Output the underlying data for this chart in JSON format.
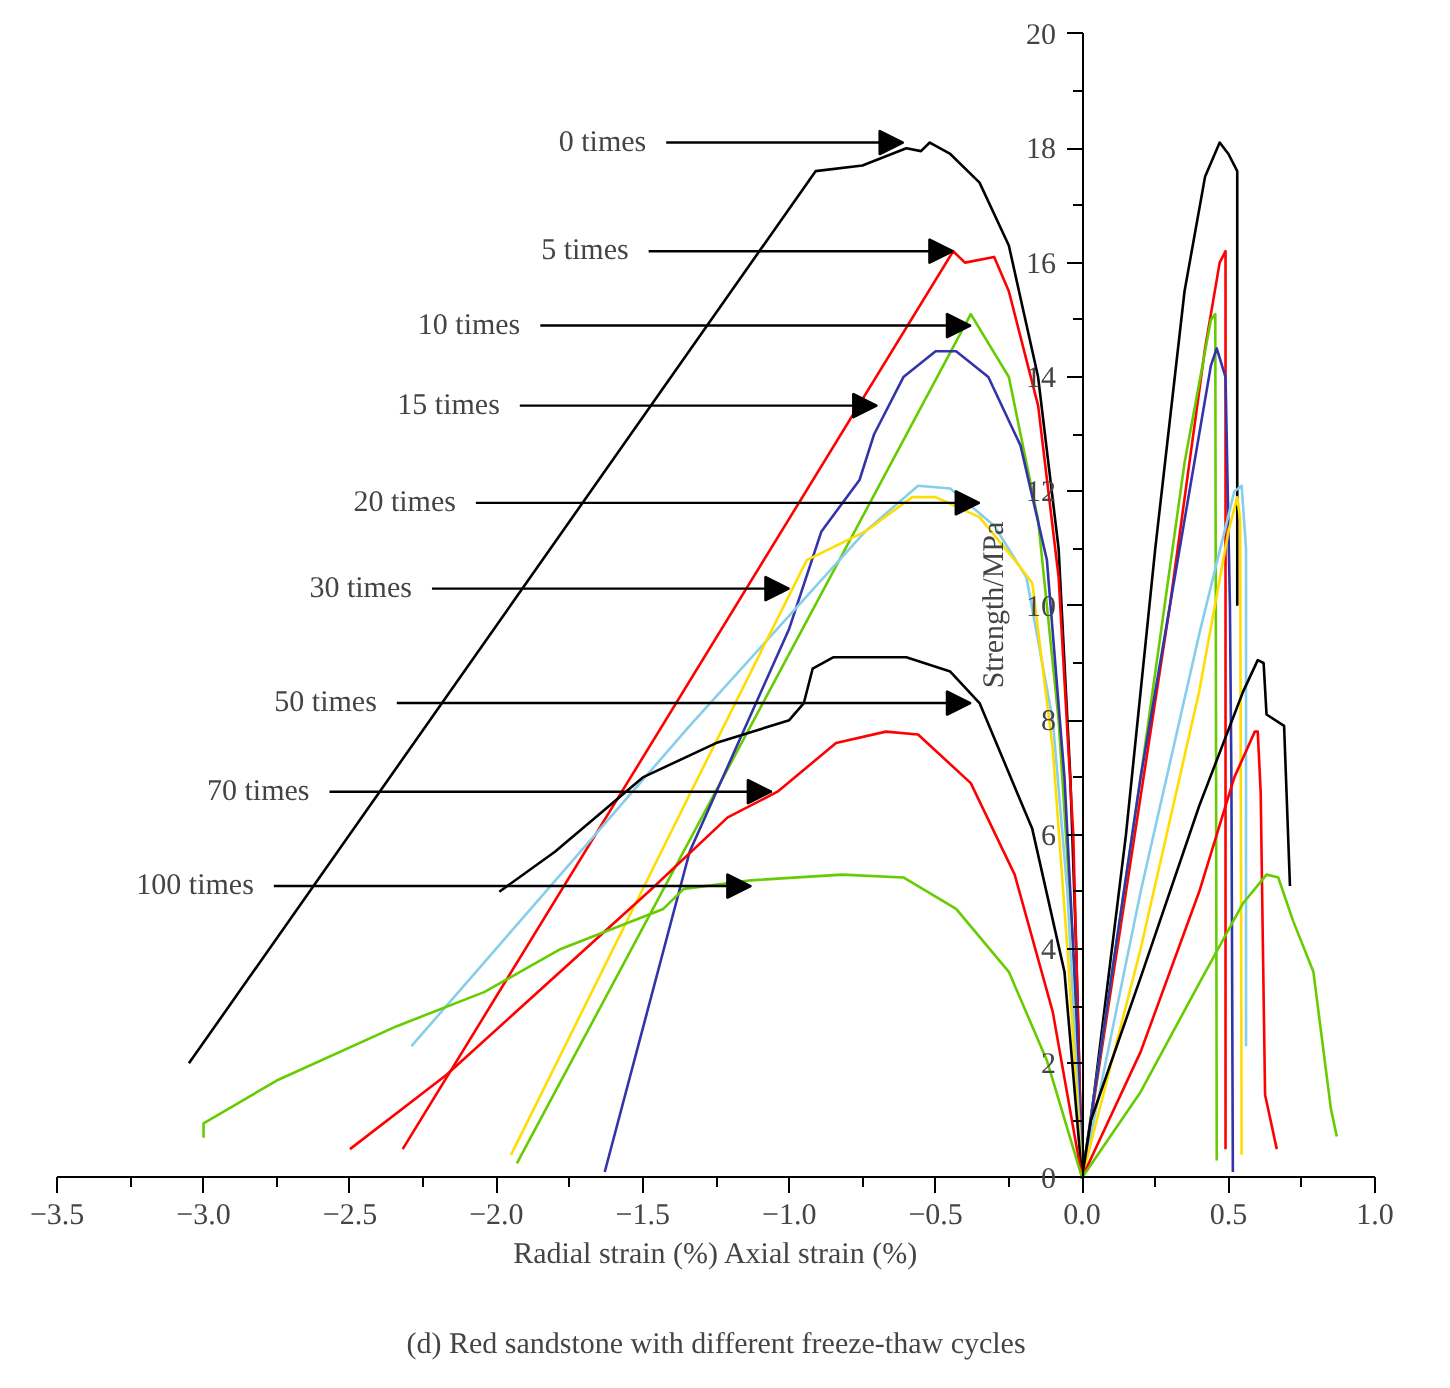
{
  "chart_data": {
    "type": "line",
    "xlabel": "Radial strain (%) Axial strain (%)",
    "ylabel": "Strength/MPa",
    "xlim": [
      -3.5,
      1.0
    ],
    "ylim": [
      0,
      20
    ],
    "xticks": [
      {
        "value": -3.5,
        "label": "−3.5"
      },
      {
        "value": -3.25,
        "label": null
      },
      {
        "value": -3.0,
        "label": "−3.0"
      },
      {
        "value": -2.75,
        "label": null
      },
      {
        "value": -2.5,
        "label": "−2.5"
      },
      {
        "value": -2.25,
        "label": null
      },
      {
        "value": -2.0,
        "label": "−2.0"
      },
      {
        "value": -1.75,
        "label": null
      },
      {
        "value": -1.5,
        "label": "−1.5"
      },
      {
        "value": -1.25,
        "label": null
      },
      {
        "value": -1.0,
        "label": "−1.0"
      },
      {
        "value": -0.75,
        "label": null
      },
      {
        "value": -0.5,
        "label": "−0.5"
      },
      {
        "value": -0.25,
        "label": null
      },
      {
        "value": 0,
        "label": "0.0"
      },
      {
        "value": 0.25,
        "label": null
      },
      {
        "value": 0.5,
        "label": "0.5"
      },
      {
        "value": 0.75,
        "label": null
      },
      {
        "value": 1.0,
        "label": "1.0"
      }
    ],
    "yticks": [
      0,
      {
        "value": 1,
        "label": null
      },
      2,
      {
        "value": 3,
        "label": null
      },
      4,
      {
        "value": 5,
        "label": null
      },
      6,
      {
        "value": 7,
        "label": null
      },
      8,
      {
        "value": 9,
        "label": null
      },
      10,
      {
        "value": 11,
        "label": null
      },
      12,
      {
        "value": 13,
        "label": null
      },
      14,
      {
        "value": 15,
        "label": null
      },
      16,
      {
        "value": 17,
        "label": null
      },
      18,
      {
        "value": 19,
        "label": null
      },
      20
    ],
    "grid": false,
    "marker": "none",
    "line_style": "solid",
    "series": [
      {
        "color": "#000000",
        "x": [
          -3.05,
          -0.91,
          -0.75,
          -0.6,
          -0.55,
          -0.52,
          -0.45,
          -0.35,
          -0.25,
          -0.15,
          -0.08,
          -0.04,
          -0.02,
          0,
          0.03,
          0.15,
          0.25,
          0.35,
          0.42,
          0.47,
          0.5,
          0.53,
          0.53
        ],
        "values": [
          2.0,
          17.6,
          17.7,
          18.0,
          17.95,
          18.1,
          17.9,
          17.4,
          16.3,
          14.0,
          11.0,
          7.0,
          4.0,
          0,
          1.0,
          6.0,
          11.0,
          15.5,
          17.5,
          18.1,
          17.9,
          17.6,
          10.0
        ]
      },
      {
        "color": "#ff0000",
        "x": [
          -2.32,
          -0.44,
          -0.4,
          -0.3,
          -0.25,
          -0.15,
          -0.08,
          -0.03,
          0,
          0.15,
          0.3,
          0.42,
          0.47,
          0.49,
          0.49
        ],
        "values": [
          0.5,
          16.2,
          16.0,
          16.1,
          15.5,
          13.5,
          10.5,
          6.0,
          0,
          5.0,
          10.0,
          14.5,
          16.0,
          16.2,
          0.5
        ]
      },
      {
        "color": "#66cc00",
        "x": [
          -1.93,
          -0.38,
          -0.25,
          -0.15,
          -0.08,
          -0.03,
          0,
          0.2,
          0.35,
          0.44,
          0.455,
          0.46
        ],
        "values": [
          0.25,
          15.1,
          14.0,
          11.5,
          8.0,
          4.0,
          0,
          7.0,
          12.5,
          15.0,
          15.1,
          0.3
        ]
      },
      {
        "color": "#3333aa",
        "x": [
          -1.63,
          -1.34,
          -1.0,
          -0.89,
          -0.76,
          -0.71,
          -0.61,
          -0.5,
          -0.43,
          -0.32,
          -0.21,
          -0.12,
          -0.06,
          -0.02,
          0,
          0.2,
          0.35,
          0.44,
          0.46,
          0.49,
          0.505,
          0.51,
          0.515
        ],
        "values": [
          0.1,
          5.7,
          9.6,
          11.3,
          12.2,
          13.0,
          14.0,
          14.45,
          14.45,
          14.0,
          12.8,
          10.8,
          7.0,
          3.0,
          0,
          7.0,
          11.5,
          14.2,
          14.5,
          14.0,
          10.0,
          7.0,
          0.1
        ]
      },
      {
        "color": "#87ceeb",
        "x": [
          -2.29,
          -1.34,
          -1.04,
          -0.74,
          -0.56,
          -0.45,
          -0.3,
          -0.19,
          -0.1,
          -0.05,
          0,
          0.2,
          0.4,
          0.52,
          0.545,
          0.56,
          0.56
        ],
        "values": [
          2.3,
          7.9,
          9.6,
          11.3,
          12.1,
          12.05,
          11.4,
          10.5,
          8.0,
          5.0,
          0,
          5.0,
          9.5,
          12.0,
          12.1,
          11.0,
          2.3
        ]
      },
      {
        "color": "#ffdd00",
        "x": [
          -1.95,
          -1.34,
          -0.94,
          -0.74,
          -0.58,
          -0.5,
          -0.35,
          -0.23,
          -0.17,
          -0.1,
          -0.05,
          0,
          0.2,
          0.4,
          0.5,
          0.53,
          0.54,
          0.545
        ],
        "values": [
          0.4,
          6.7,
          10.8,
          11.3,
          11.9,
          11.9,
          11.55,
          10.8,
          10.4,
          7.5,
          4.0,
          0,
          4.0,
          8.5,
          11.3,
          11.9,
          11.5,
          0.4
        ]
      },
      {
        "color": "#000000",
        "x": [
          -1.99,
          -1.8,
          -1.5,
          -1.25,
          -1.0,
          -0.95,
          -0.92,
          -0.85,
          -0.6,
          -0.45,
          -0.35,
          -0.17,
          -0.06,
          0,
          0.03,
          0.2,
          0.4,
          0.55,
          0.6,
          0.62,
          0.63,
          0.69,
          0.71
        ],
        "values": [
          5.0,
          5.7,
          7.0,
          7.6,
          8.0,
          8.3,
          8.9,
          9.1,
          9.1,
          8.85,
          8.3,
          6.1,
          3.6,
          0,
          1.0,
          3.5,
          6.5,
          8.5,
          9.05,
          9.0,
          8.1,
          7.9,
          5.1
        ]
      },
      {
        "color": "#ff0000",
        "x": [
          -2.5,
          -2.17,
          -1.47,
          -1.21,
          -1.04,
          -0.84,
          -0.67,
          -0.56,
          -0.38,
          -0.23,
          -0.1,
          0,
          0.2,
          0.4,
          0.52,
          0.59,
          0.6,
          0.61,
          0.625,
          0.665
        ],
        "values": [
          0.5,
          1.8,
          5.05,
          6.3,
          6.75,
          7.6,
          7.8,
          7.75,
          6.9,
          5.3,
          2.9,
          0,
          2.2,
          5.0,
          7.0,
          7.8,
          7.8,
          6.75,
          1.45,
          0.5
        ]
      },
      {
        "color": "#66cc00",
        "x": [
          -3.0,
          -3.0,
          -2.75,
          -2.34,
          -2.04,
          -1.78,
          -1.43,
          -1.36,
          -1.13,
          -0.82,
          -0.61,
          -0.43,
          -0.25,
          -0.12,
          0,
          0.2,
          0.4,
          0.55,
          0.63,
          0.67,
          0.72,
          0.79,
          0.85,
          0.87
        ],
        "values": [
          0.7,
          0.95,
          1.7,
          2.65,
          3.25,
          4.0,
          4.7,
          5.05,
          5.2,
          5.3,
          5.25,
          4.7,
          3.6,
          2.05,
          0,
          1.5,
          3.4,
          4.8,
          5.3,
          5.25,
          4.5,
          3.6,
          1.2,
          0.72
        ]
      }
    ],
    "annotations": [
      {
        "text": "0 times",
        "x": -0.61,
        "y": 18.1
      },
      {
        "text": "5 times",
        "x": -0.44,
        "y": 16.2
      },
      {
        "text": "10 times",
        "x": -0.38,
        "y": 14.9
      },
      {
        "text": "15 times",
        "x": -0.7,
        "y": 13.5
      },
      {
        "text": "20 times",
        "x": -0.35,
        "y": 11.8
      },
      {
        "text": "30 times",
        "x": -1.0,
        "y": 10.3
      },
      {
        "text": "50 times",
        "x": -0.38,
        "y": 8.3
      },
      {
        "text": "70 times",
        "x": -1.06,
        "y": 6.75
      },
      {
        "text": "100 times",
        "x": -1.13,
        "y": 5.1
      },
      "(d) Red sandstone with different freeze-thaw cycles"
    ]
  }
}
